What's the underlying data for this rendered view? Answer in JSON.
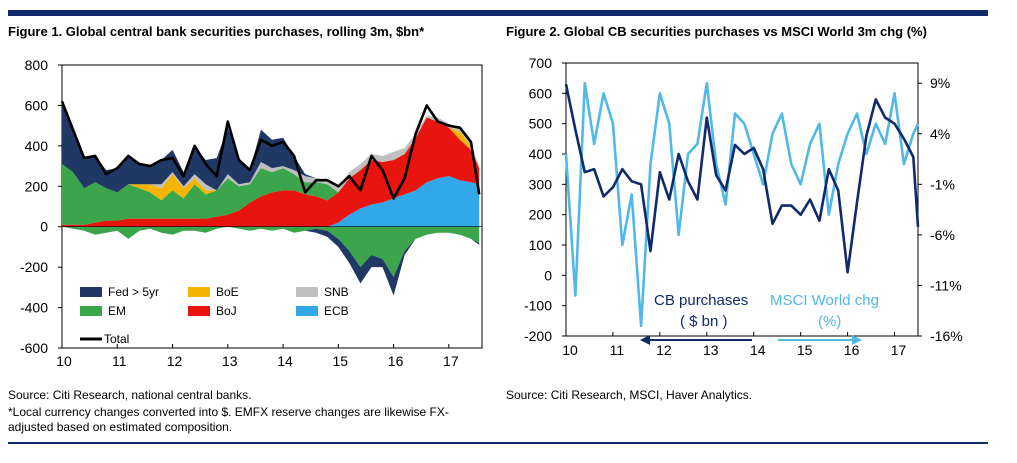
{
  "page": {
    "source1": "Source: Citi Research, national central banks.",
    "footnote1": "*Local currency changes converted into $. EMFX reserve changes are likewise FX-",
    "footnote2": "adjusted based on estimated composition.",
    "source2": "Source: Citi Research, MSCI, Haver Analytics."
  },
  "colors": {
    "rule": "#102a6b",
    "fed": "#1f3864",
    "boe": "#f4b400",
    "snb": "#c0c0c0",
    "em": "#3aa54a",
    "boj": "#e8150f",
    "ecb": "#32a8e8",
    "total": "#000000",
    "cb_line": "#102a6b",
    "msci_line": "#52b8e8"
  },
  "chart_data": [
    {
      "type": "area",
      "title": "Figure 1. Global central bank securities purchases, rolling 3m, $bn*",
      "ylim": [
        -600,
        800
      ],
      "yticks": [
        -600,
        -400,
        -200,
        0,
        200,
        400,
        600,
        800
      ],
      "xlim": [
        10,
        17.6
      ],
      "xticks": [
        10,
        11,
        12,
        13,
        14,
        15,
        16,
        17
      ],
      "legend": [
        {
          "name": "Fed > 5yr",
          "key": "fed"
        },
        {
          "name": "BoE",
          "key": "boe"
        },
        {
          "name": "SNB",
          "key": "snb"
        },
        {
          "name": "EM",
          "key": "em"
        },
        {
          "name": "BoJ",
          "key": "boj"
        },
        {
          "name": "ECB",
          "key": "ecb"
        },
        {
          "name": "Total",
          "key": "total"
        }
      ],
      "x": [
        10.0,
        10.2,
        10.4,
        10.6,
        10.8,
        11.0,
        11.2,
        11.4,
        11.6,
        11.8,
        12.0,
        12.2,
        12.4,
        12.6,
        12.8,
        13.0,
        13.2,
        13.4,
        13.6,
        13.8,
        14.0,
        14.2,
        14.4,
        14.6,
        14.8,
        15.0,
        15.2,
        15.4,
        15.6,
        15.8,
        16.0,
        16.2,
        16.4,
        16.6,
        16.8,
        17.0,
        17.2,
        17.4,
        17.55
      ],
      "series": [
        {
          "name": "ECB",
          "values": [
            0,
            0,
            0,
            0,
            0,
            0,
            0,
            0,
            0,
            0,
            0,
            0,
            0,
            0,
            0,
            0,
            0,
            0,
            0,
            0,
            0,
            0,
            0,
            0,
            0,
            20,
            60,
            90,
            110,
            120,
            140,
            160,
            180,
            220,
            240,
            250,
            230,
            220,
            210
          ]
        },
        {
          "name": "BoJ",
          "values": [
            10,
            10,
            10,
            20,
            30,
            30,
            40,
            40,
            40,
            40,
            40,
            40,
            40,
            40,
            50,
            60,
            80,
            120,
            150,
            170,
            180,
            180,
            160,
            150,
            130,
            150,
            180,
            190,
            220,
            200,
            190,
            200,
            260,
            320,
            280,
            240,
            200,
            160,
            80
          ]
        },
        {
          "name": "EM",
          "values": [
            300,
            260,
            180,
            200,
            160,
            140,
            170,
            150,
            130,
            90,
            140,
            100,
            170,
            120,
            130,
            180,
            120,
            90,
            140,
            100,
            110,
            80,
            60,
            70,
            80,
            0,
            0,
            0,
            0,
            0,
            0,
            0,
            0,
            0,
            0,
            0,
            0,
            0,
            0
          ]
        },
        {
          "name": "BoE",
          "values": [
            0,
            0,
            0,
            0,
            0,
            0,
            0,
            20,
            40,
            60,
            80,
            50,
            30,
            20,
            0,
            0,
            0,
            0,
            0,
            0,
            0,
            0,
            0,
            0,
            0,
            0,
            0,
            0,
            0,
            0,
            0,
            0,
            0,
            0,
            0,
            0,
            40,
            20,
            0
          ]
        },
        {
          "name": "SNB",
          "values": [
            0,
            0,
            0,
            0,
            0,
            0,
            0,
            0,
            0,
            20,
            10,
            10,
            20,
            30,
            0,
            20,
            10,
            10,
            30,
            20,
            10,
            20,
            30,
            20,
            20,
            30,
            30,
            30,
            30,
            30,
            40,
            30,
            20,
            10,
            20,
            20,
            20,
            10,
            10
          ]
        },
        {
          "name": "Fed > 5yr",
          "values": [
            310,
            220,
            150,
            130,
            90,
            120,
            140,
            100,
            90,
            120,
            110,
            70,
            140,
            120,
            160,
            230,
            130,
            60,
            160,
            140,
            140,
            70,
            10,
            0,
            0,
            0,
            0,
            0,
            0,
            0,
            0,
            0,
            0,
            0,
            0,
            0,
            0,
            0,
            0
          ]
        },
        {
          "name": "EM (negative)",
          "values": [
            0,
            -10,
            -20,
            -40,
            -30,
            -20,
            -60,
            -20,
            -10,
            -30,
            -40,
            -20,
            -20,
            -30,
            -10,
            0,
            -10,
            -20,
            -10,
            -20,
            -10,
            -30,
            -20,
            -10,
            -20,
            -60,
            -120,
            -200,
            -140,
            -160,
            -250,
            -120,
            -60,
            -40,
            -30,
            -30,
            -40,
            -60,
            -80
          ]
        },
        {
          "name": "Fed > 5yr (negative)",
          "values": [
            0,
            0,
            0,
            0,
            0,
            0,
            0,
            0,
            0,
            0,
            0,
            0,
            0,
            0,
            0,
            0,
            0,
            0,
            0,
            0,
            0,
            0,
            0,
            -20,
            -30,
            -40,
            -60,
            -80,
            -60,
            -40,
            -90,
            -20,
            0,
            0,
            0,
            0,
            0,
            0,
            -10
          ]
        },
        {
          "name": "Total",
          "values": [
            620,
            480,
            340,
            350,
            260,
            290,
            350,
            310,
            300,
            330,
            340,
            250,
            400,
            310,
            250,
            520,
            330,
            280,
            430,
            400,
            420,
            350,
            170,
            230,
            230,
            200,
            250,
            180,
            350,
            280,
            140,
            240,
            460,
            600,
            520,
            500,
            490,
            420,
            160
          ]
        }
      ]
    },
    {
      "type": "line",
      "title": "Figure 2. Global CB securities purchases vs MSCI World 3m chg (%)",
      "ylim": [
        -200,
        700
      ],
      "yticks": [
        -200,
        -100,
        0,
        100,
        200,
        300,
        400,
        500,
        600,
        700
      ],
      "y2lim": [
        -16,
        11
      ],
      "y2ticks": [
        "9%",
        "4%",
        "-1%",
        "-6%",
        "-11%",
        "-16%"
      ],
      "y2values": [
        9,
        4,
        -1,
        -6,
        -11,
        -16
      ],
      "xlim": [
        10,
        17.5
      ],
      "xticks": [
        10,
        11,
        12,
        13,
        14,
        15,
        16,
        17
      ],
      "annotations": {
        "cb_label_1": "CB purchases",
        "cb_label_2": "( $ bn )",
        "msci_label_1": "MSCI World chg",
        "msci_label_2": "(%)"
      },
      "x": [
        10.0,
        10.2,
        10.4,
        10.6,
        10.8,
        11.0,
        11.2,
        11.4,
        11.6,
        11.8,
        12.0,
        12.2,
        12.4,
        12.6,
        12.8,
        13.0,
        13.2,
        13.4,
        13.6,
        13.8,
        14.0,
        14.2,
        14.4,
        14.6,
        14.8,
        15.0,
        15.2,
        15.4,
        15.6,
        15.8,
        16.0,
        16.2,
        16.4,
        16.6,
        16.8,
        17.0,
        17.2,
        17.4,
        17.5
      ],
      "series": [
        {
          "name": "CB purchases ($ bn)",
          "axis": "left",
          "values": [
            630,
            480,
            340,
            350,
            260,
            290,
            350,
            310,
            300,
            80,
            340,
            250,
            400,
            310,
            250,
            520,
            330,
            280,
            430,
            400,
            420,
            350,
            170,
            230,
            230,
            200,
            250,
            180,
            350,
            280,
            10,
            240,
            460,
            580,
            520,
            500,
            450,
            390,
            160
          ]
        },
        {
          "name": "MSCI World chg (%)",
          "axis": "right",
          "values": [
            2,
            -12,
            9,
            3,
            8,
            5,
            -7,
            -2,
            -15,
            1,
            8,
            5,
            -6,
            2,
            3,
            9,
            1,
            -3,
            6,
            5,
            2,
            -1,
            4,
            6,
            1,
            -1,
            3,
            5,
            -4,
            1,
            4,
            6,
            2,
            5,
            3,
            8,
            1,
            4,
            5
          ]
        }
      ]
    }
  ]
}
